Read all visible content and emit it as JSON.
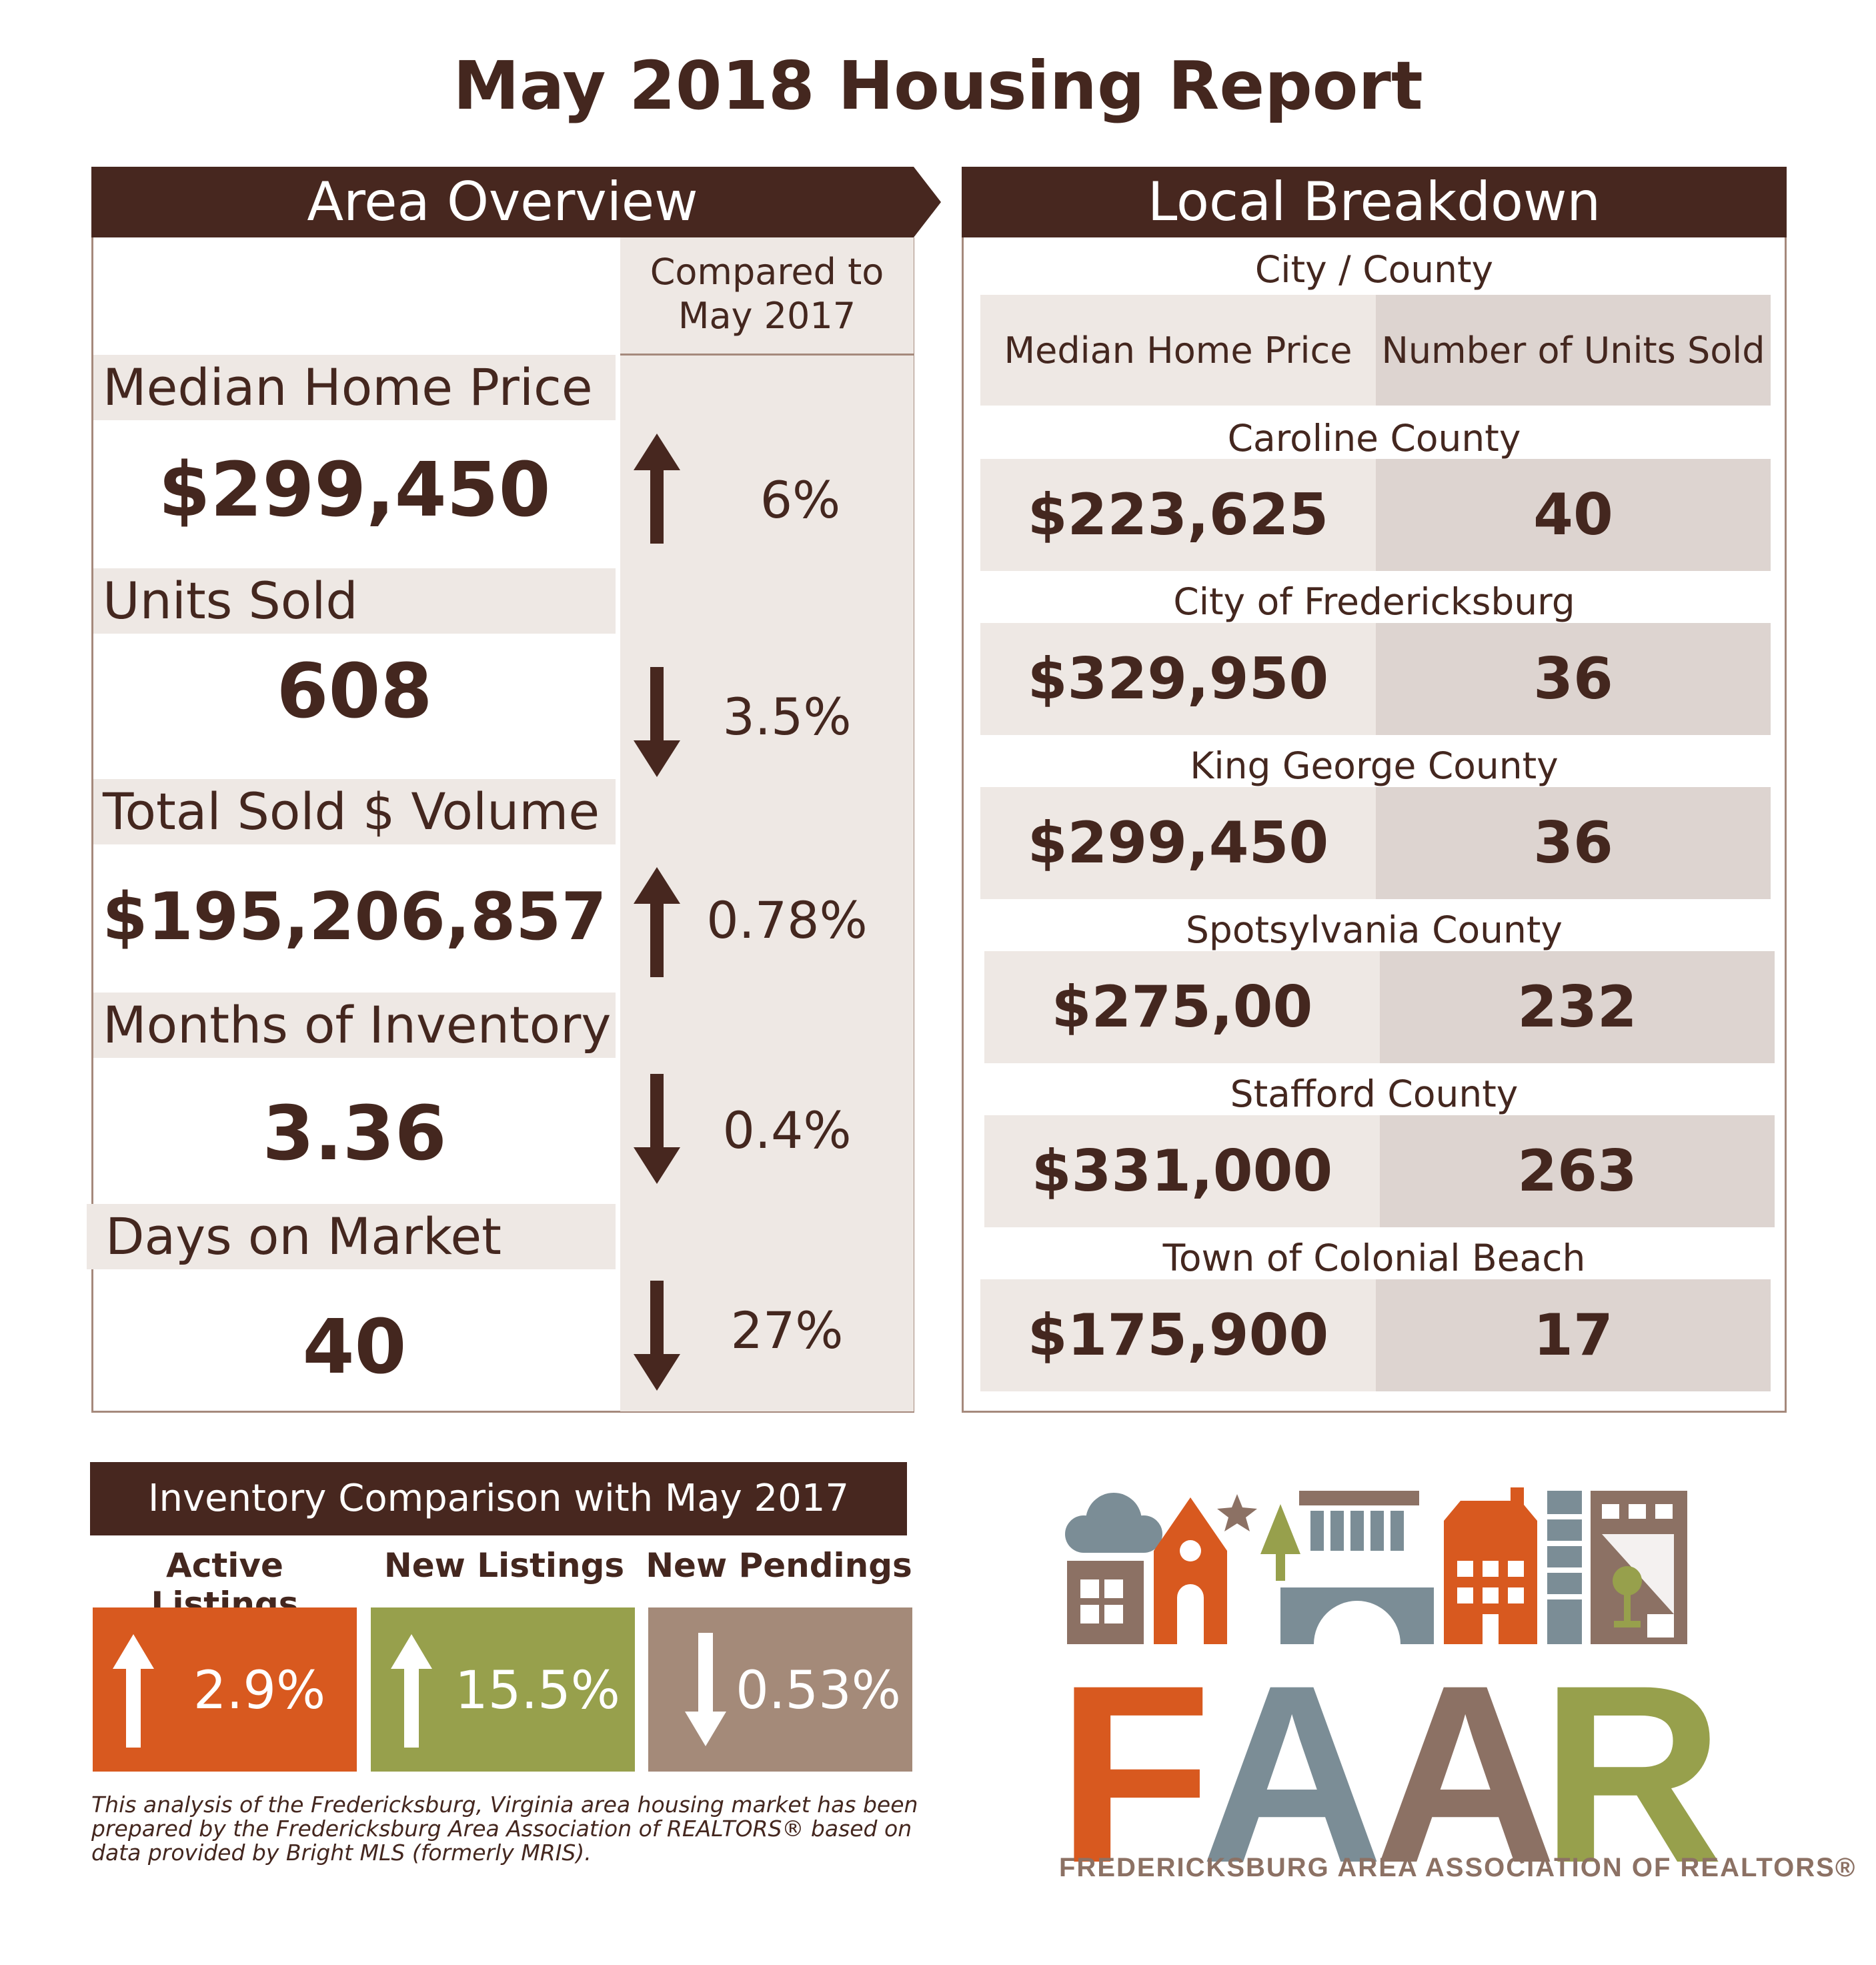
{
  "title": "May 2018 Housing Report",
  "area_overview": {
    "header": "Area Overview",
    "compared_to": "Compared to May 2017",
    "metrics": [
      {
        "label": "Median Home Price",
        "value": "$299,450",
        "direction": "up",
        "change": "6%"
      },
      {
        "label": "Units Sold",
        "value": "608",
        "direction": "down",
        "change": "3.5%"
      },
      {
        "label": "Total Sold $ Volume",
        "value": "$195,206,857",
        "direction": "up",
        "change": "0.78%"
      },
      {
        "label": "Months of Inventory",
        "value": "3.36",
        "direction": "down",
        "change": "0.4%"
      },
      {
        "label": "Days on Market",
        "value": "40",
        "direction": "down",
        "change": "27%"
      }
    ]
  },
  "local_breakdown": {
    "header": "Local Breakdown",
    "subheader": "City / County",
    "col_price": "Median Home Price",
    "col_units": "Number of Units Sold",
    "areas": [
      {
        "name": "Caroline County",
        "price": "$223,625",
        "units": "40"
      },
      {
        "name": "City of Fredericksburg",
        "price": "$329,950",
        "units": "36"
      },
      {
        "name": "King George County",
        "price": "$299,450",
        "units": "36"
      },
      {
        "name": "Spotsylvania County",
        "price": "$275,00",
        "units": "232"
      },
      {
        "name": "Stafford County",
        "price": "$331,000",
        "units": "263"
      },
      {
        "name": "Town of Colonial Beach",
        "price": "$175,900",
        "units": "17"
      }
    ]
  },
  "inventory": {
    "header": "Inventory Comparison with May 2017",
    "items": [
      {
        "label": "Active Listings",
        "change": "2.9%",
        "direction": "up",
        "color": "#d8591f"
      },
      {
        "label": "New Listings",
        "change": "15.5%",
        "direction": "up",
        "color": "#97a04c"
      },
      {
        "label": "New Pendings",
        "change": "0.53%",
        "direction": "down",
        "color": "#a48a79"
      }
    ]
  },
  "footnote": "This analysis of the Fredericksburg, Virginia area housing market has been prepared by the Fredericksburg Area Association of REALTORS® based on data provided by Bright MLS (formerly MRIS).",
  "logo": {
    "letters": [
      "F",
      "A",
      "A",
      "R"
    ],
    "letter_colors": [
      "#d8591f",
      "#7b8d96",
      "#8c7164",
      "#97a04c"
    ],
    "tagline": "FREDERICKSBURG AREA ASSOCIATION OF REALTORS®"
  },
  "colors": {
    "brown": "#47271f",
    "band": "#eee8e4",
    "band_dark": "#ddd4d0",
    "border": "#a5897c"
  }
}
